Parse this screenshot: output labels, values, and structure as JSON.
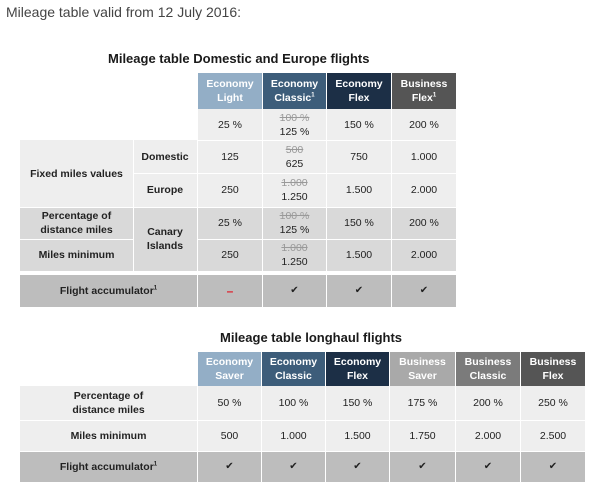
{
  "intro": "Mileage table valid from 12 July 2016:",
  "colors": {
    "light_blue": "#93aec6",
    "mid_blue": "#3d5d7a",
    "dark_navy": "#1c2f46",
    "dark_grey": "#555555",
    "light_grey_header": "#a9a9a9",
    "mid_grey_header": "#7b7b7b",
    "row_light": "#eeeeee",
    "row_dark": "#d9d9d9",
    "accumulator_row": "#bdbdbd",
    "dash_red": "#e0202c"
  },
  "table1": {
    "caption": "Mileage table Domestic and Europe flights",
    "headers": [
      {
        "line1": "Economy",
        "line2": "Light",
        "sup": ""
      },
      {
        "line1": "Economy",
        "line2": "Classic",
        "sup": "1"
      },
      {
        "line1": "Economy",
        "line2": "Flex",
        "sup": ""
      },
      {
        "line1": "Business",
        "line2": "Flex",
        "sup": "1"
      }
    ],
    "fixed_label": "Fixed miles values",
    "percentage_label": "Percentage of distance miles",
    "minimum_label": "Miles minimum",
    "domestic_label": "Domestic",
    "europe_label": "Europe",
    "canary_label": "Canary Islands",
    "rows": [
      {
        "c1": "25 %",
        "c2_old": "100 %",
        "c2": "125 %",
        "c3": "150 %",
        "c4": "200 %"
      },
      {
        "c1": "125",
        "c2_old": "500",
        "c2": "625",
        "c3": "750",
        "c4": "1.000"
      },
      {
        "c1": "250",
        "c2_old": "1.000",
        "c2": "1.250",
        "c3": "1.500",
        "c4": "2.000"
      },
      {
        "c1": "25 %",
        "c2_old": "100 %",
        "c2": "125 %",
        "c3": "150 %",
        "c4": "200 %"
      },
      {
        "c1": "250",
        "c2_old": "1.000",
        "c2": "1.250",
        "c3": "1.500",
        "c4": "2.000"
      }
    ],
    "accumulator": {
      "label": "Flight accumulator",
      "sup": "1",
      "c1": "–",
      "c2": "✔",
      "c3": "✔",
      "c4": "✔"
    }
  },
  "table2": {
    "caption": "Mileage table longhaul flights",
    "headers": [
      {
        "line1": "Economy",
        "line2": "Saver"
      },
      {
        "line1": "Economy",
        "line2": "Classic"
      },
      {
        "line1": "Economy",
        "line2": "Flex"
      },
      {
        "line1": "Business",
        "line2": "Saver"
      },
      {
        "line1": "Business",
        "line2": "Classic"
      },
      {
        "line1": "Business",
        "line2": "Flex"
      }
    ],
    "percentage_label": "Percentage of distance miles",
    "minimum_label": "Miles minimum",
    "percentage": [
      "50 %",
      "100 %",
      "150 %",
      "175 %",
      "200 %",
      "250 %"
    ],
    "minimum": [
      "500",
      "1.000",
      "1.500",
      "1.750",
      "2.000",
      "2.500"
    ],
    "accumulator": {
      "label": "Flight accumulator",
      "sup": "1",
      "values": [
        "✔",
        "✔",
        "✔",
        "✔",
        "✔",
        "✔"
      ]
    }
  }
}
